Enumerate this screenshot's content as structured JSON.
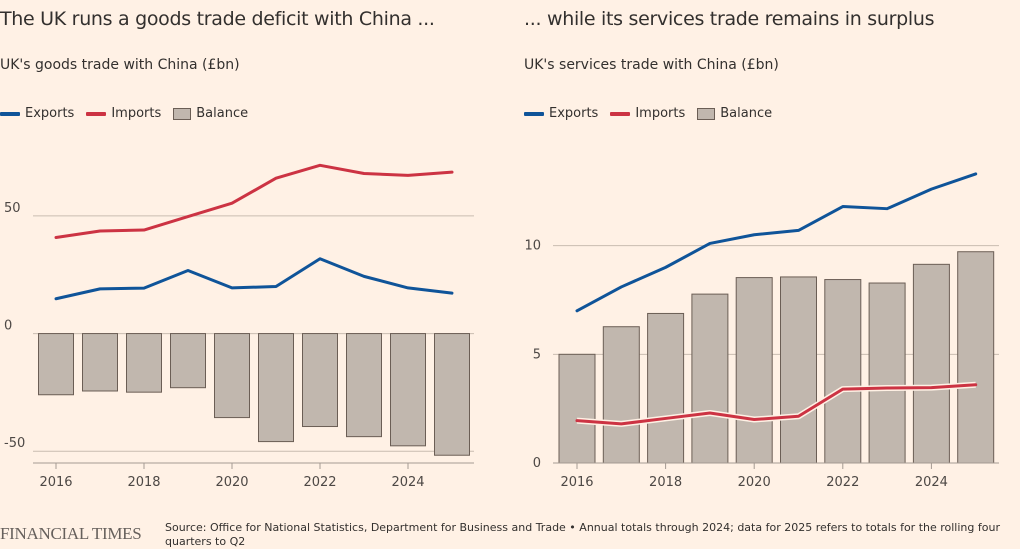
{
  "colors": {
    "exports": "#0f5499",
    "imports": "#cc3343",
    "balance_fill": "#c1b7ae",
    "balance_stroke": "#6b5e55",
    "grid": "#c9bcb0",
    "background": "#fff1e5"
  },
  "chart_data": [
    {
      "type": "bar+line",
      "title": "The UK runs a goods trade deficit with China ...",
      "subtitle": "UK's goods trade with China (£bn)",
      "legend": [
        "Exports",
        "Imports",
        "Balance"
      ],
      "legend_position": "top-left",
      "x": [
        2016,
        2017,
        2018,
        2019,
        2020,
        2021,
        2022,
        2023,
        2024,
        2025
      ],
      "x_ticks": [
        "2016",
        "2018",
        "2020",
        "2022",
        "2024"
      ],
      "y_ticks": [
        "50",
        "0",
        "-50"
      ],
      "ylim": [
        -55,
        78
      ],
      "grid": true,
      "series": [
        {
          "name": "Exports",
          "kind": "line",
          "values": [
            14.8,
            19,
            19.3,
            26.8,
            19.4,
            20,
            31.8,
            24.3,
            19.4,
            17.2
          ]
        },
        {
          "name": "Imports",
          "kind": "line",
          "values": [
            40.8,
            43.6,
            44,
            49.7,
            55.4,
            66,
            71.5,
            68,
            67.2,
            68.6
          ]
        },
        {
          "name": "Balance",
          "kind": "bar",
          "values": [
            -26,
            -24.4,
            -24.9,
            -23,
            -35.7,
            -45.9,
            -39.5,
            -43.8,
            -47.7,
            -51.7
          ]
        }
      ]
    },
    {
      "type": "bar+line",
      "title": "... while its services trade remains in surplus",
      "subtitle": "UK's services trade with China (£bn)",
      "legend": [
        "Exports",
        "Imports",
        "Balance"
      ],
      "legend_position": "top-left",
      "x": [
        2016,
        2017,
        2018,
        2019,
        2020,
        2021,
        2022,
        2023,
        2024,
        2025
      ],
      "x_ticks": [
        "2016",
        "2018",
        "2020",
        "2022",
        "2024"
      ],
      "y_ticks": [
        "10",
        "5",
        "0"
      ],
      "ylim": [
        0,
        14.4
      ],
      "grid": true,
      "series": [
        {
          "name": "Exports",
          "kind": "line",
          "values": [
            7.0,
            8.1,
            9.0,
            10.1,
            10.5,
            10.7,
            11.8,
            11.7,
            12.6,
            13.3
          ]
        },
        {
          "name": "Imports",
          "kind": "line",
          "values": [
            1.95,
            1.8,
            2.05,
            2.3,
            2.0,
            2.15,
            3.4,
            3.45,
            3.47,
            3.6
          ]
        },
        {
          "name": "Balance",
          "kind": "bar",
          "values": [
            5.0,
            6.27,
            6.88,
            7.77,
            8.53,
            8.56,
            8.44,
            8.28,
            9.14,
            9.72
          ]
        }
      ]
    }
  ],
  "footer": {
    "logo": "FINANCIAL TIMES",
    "source": "Source: Office for National Statistics, Department for Business and Trade • Annual totals through 2024; data for 2025 refers to totals for the rolling four quarters to Q2"
  }
}
